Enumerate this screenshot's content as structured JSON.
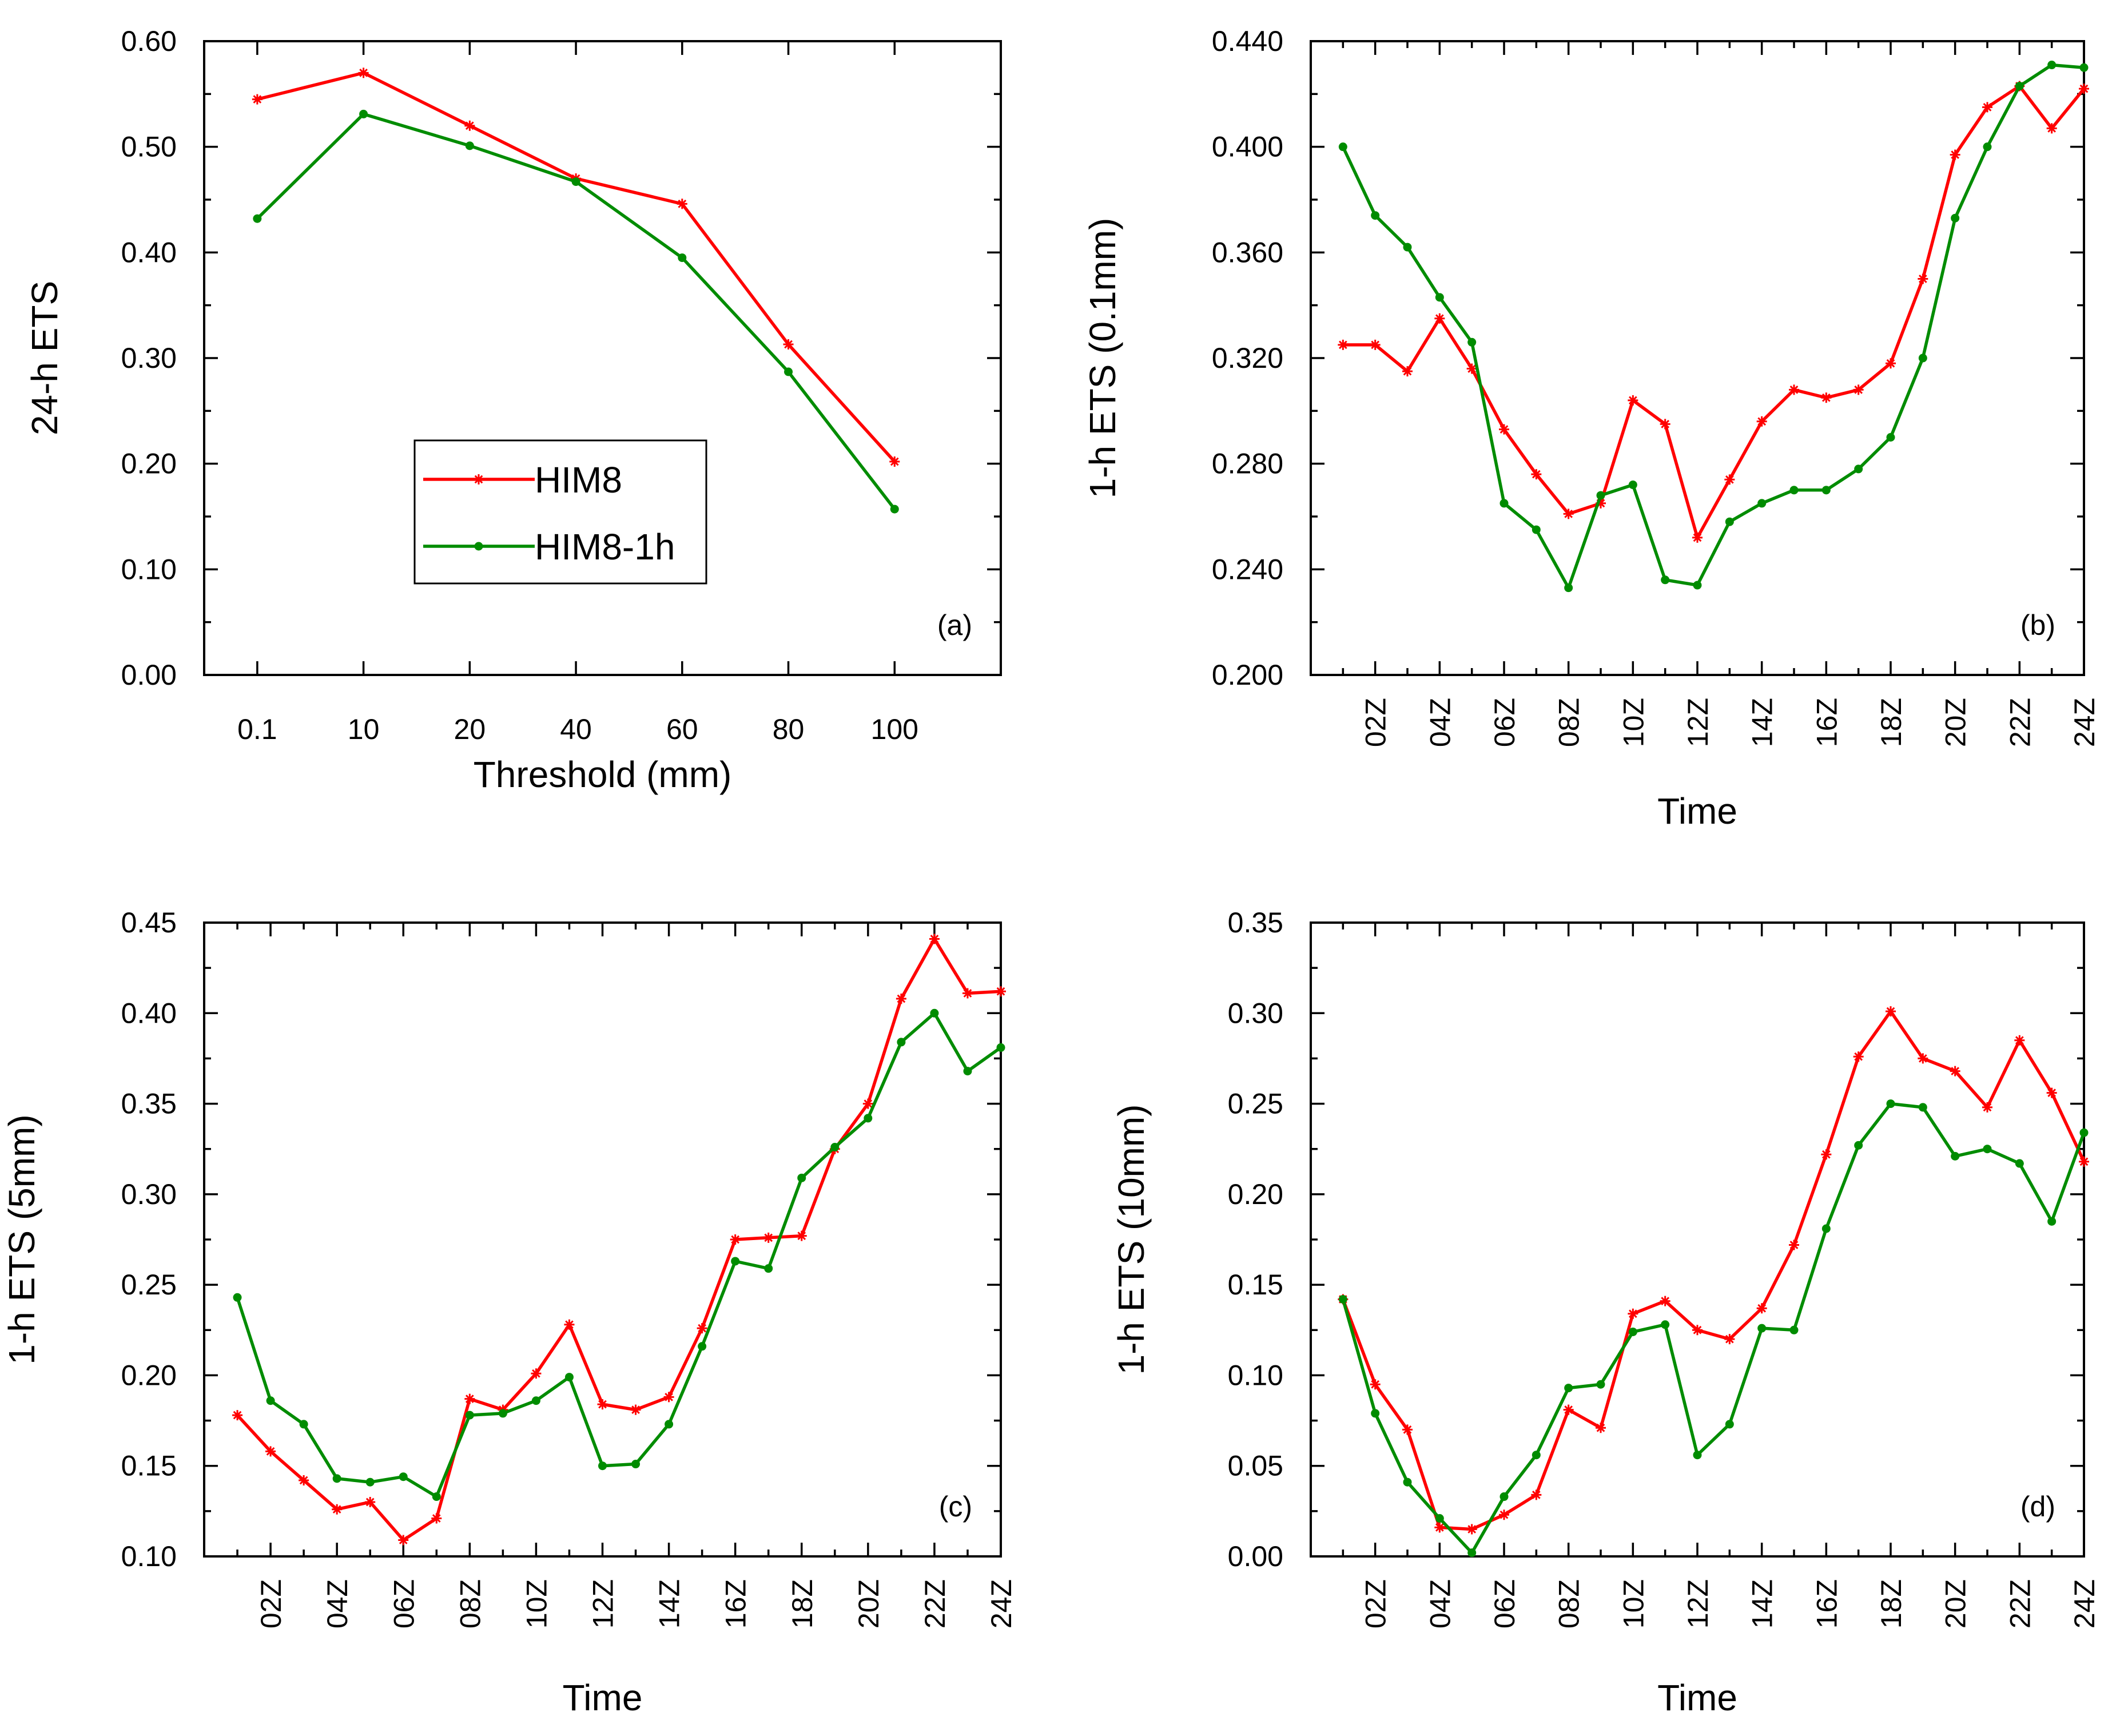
{
  "colors": {
    "HIM8": "#ff0000",
    "HIM8-1h": "#008c00"
  },
  "chart_data": [
    {
      "type": "line",
      "panel_label": "(a)",
      "xlabel": "Threshold (mm)",
      "ylabel": "24-h ETS",
      "categories": [
        "0.1",
        "10",
        "20",
        "40",
        "60",
        "80",
        "100"
      ],
      "ylim": [
        0,
        0.6
      ],
      "yticks": [
        "0.00",
        "0.10",
        "0.20",
        "0.30",
        "0.40",
        "0.50",
        "0.60"
      ],
      "legend": {
        "position": "bottom-left",
        "entries": [
          "HIM8",
          "HIM8-1h"
        ]
      },
      "series": [
        {
          "name": "HIM8",
          "marker": "asterisk",
          "values": [
            0.545,
            0.57,
            0.52,
            0.47,
            0.446,
            0.313,
            0.202
          ]
        },
        {
          "name": "HIM8-1h",
          "marker": "dot",
          "values": [
            0.432,
            0.531,
            0.501,
            0.467,
            0.395,
            0.287,
            0.157
          ]
        }
      ]
    },
    {
      "type": "line",
      "panel_label": "(b)",
      "xlabel": "Time",
      "ylabel": "1-h ETS (0.1mm)",
      "x": [
        1,
        2,
        3,
        4,
        5,
        6,
        7,
        8,
        9,
        10,
        11,
        12,
        13,
        14,
        15,
        16,
        17,
        18,
        19,
        20,
        21,
        22,
        23,
        24
      ],
      "xticks": [
        "02Z",
        "04Z",
        "06Z",
        "08Z",
        "10Z",
        "12Z",
        "14Z",
        "16Z",
        "18Z",
        "20Z",
        "22Z",
        "24Z"
      ],
      "ylim": [
        0.2,
        0.44
      ],
      "yticks": [
        "0.200",
        "0.240",
        "0.280",
        "0.320",
        "0.360",
        "0.400",
        "0.440"
      ],
      "series": [
        {
          "name": "HIM8",
          "marker": "asterisk",
          "values": [
            0.325,
            0.325,
            0.315,
            0.335,
            0.316,
            0.293,
            0.276,
            0.261,
            0.265,
            0.304,
            0.295,
            0.252,
            0.274,
            0.296,
            0.308,
            0.305,
            0.308,
            0.318,
            0.35,
            0.397,
            0.415,
            0.423,
            0.407,
            0.422
          ]
        },
        {
          "name": "HIM8-1h",
          "marker": "dot",
          "values": [
            0.4,
            0.374,
            0.362,
            0.343,
            0.326,
            0.265,
            0.255,
            0.233,
            0.268,
            0.272,
            0.236,
            0.234,
            0.258,
            0.265,
            0.27,
            0.27,
            0.278,
            0.29,
            0.32,
            0.373,
            0.4,
            0.423,
            0.431,
            0.43
          ]
        }
      ]
    },
    {
      "type": "line",
      "panel_label": "(c)",
      "xlabel": "Time",
      "ylabel": "1-h ETS (5mm)",
      "x": [
        1,
        2,
        3,
        4,
        5,
        6,
        7,
        8,
        9,
        10,
        11,
        12,
        13,
        14,
        15,
        16,
        17,
        18,
        19,
        20,
        21,
        22,
        23,
        24
      ],
      "xticks": [
        "02Z",
        "04Z",
        "06Z",
        "08Z",
        "10Z",
        "12Z",
        "14Z",
        "16Z",
        "18Z",
        "20Z",
        "22Z",
        "24Z"
      ],
      "ylim": [
        0.1,
        0.45
      ],
      "yticks": [
        "0.10",
        "0.15",
        "0.20",
        "0.25",
        "0.30",
        "0.35",
        "0.40",
        "0.45"
      ],
      "series": [
        {
          "name": "HIM8",
          "marker": "asterisk",
          "values": [
            0.178,
            0.158,
            0.142,
            0.126,
            0.13,
            0.109,
            0.121,
            0.187,
            0.181,
            0.201,
            0.228,
            0.184,
            0.181,
            0.188,
            0.226,
            0.275,
            0.276,
            0.277,
            0.325,
            0.35,
            0.408,
            0.441,
            0.411,
            0.412
          ]
        },
        {
          "name": "HIM8-1h",
          "marker": "dot",
          "values": [
            0.243,
            0.186,
            0.173,
            0.143,
            0.141,
            0.144,
            0.133,
            0.178,
            0.179,
            0.186,
            0.199,
            0.15,
            0.151,
            0.173,
            0.216,
            0.263,
            0.259,
            0.309,
            0.326,
            0.342,
            0.384,
            0.4,
            0.368,
            0.381
          ]
        }
      ]
    },
    {
      "type": "line",
      "panel_label": "(d)",
      "xlabel": "Time",
      "ylabel": "1-h ETS (10mm)",
      "x": [
        1,
        2,
        3,
        4,
        5,
        6,
        7,
        8,
        9,
        10,
        11,
        12,
        13,
        14,
        15,
        16,
        17,
        18,
        19,
        20,
        21,
        22,
        23,
        24
      ],
      "xticks": [
        "02Z",
        "04Z",
        "06Z",
        "08Z",
        "10Z",
        "12Z",
        "14Z",
        "16Z",
        "18Z",
        "20Z",
        "22Z",
        "24Z"
      ],
      "ylim": [
        0,
        0.35
      ],
      "yticks": [
        "0.00",
        "0.05",
        "0.10",
        "0.15",
        "0.20",
        "0.25",
        "0.30",
        "0.35"
      ],
      "series": [
        {
          "name": "HIM8",
          "marker": "asterisk",
          "values": [
            0.142,
            0.095,
            0.07,
            0.016,
            0.015,
            0.023,
            0.034,
            0.081,
            0.071,
            0.134,
            0.141,
            0.125,
            0.12,
            0.137,
            0.172,
            0.222,
            0.276,
            0.301,
            0.275,
            0.268,
            0.248,
            0.285,
            0.256,
            0.218
          ]
        },
        {
          "name": "HIM8-1h",
          "marker": "dot",
          "values": [
            0.142,
            0.079,
            0.041,
            0.021,
            0.002,
            0.033,
            0.056,
            0.093,
            0.095,
            0.124,
            0.128,
            0.056,
            0.073,
            0.126,
            0.125,
            0.181,
            0.227,
            0.25,
            0.248,
            0.221,
            0.225,
            0.217,
            0.185,
            0.234
          ]
        }
      ]
    }
  ]
}
